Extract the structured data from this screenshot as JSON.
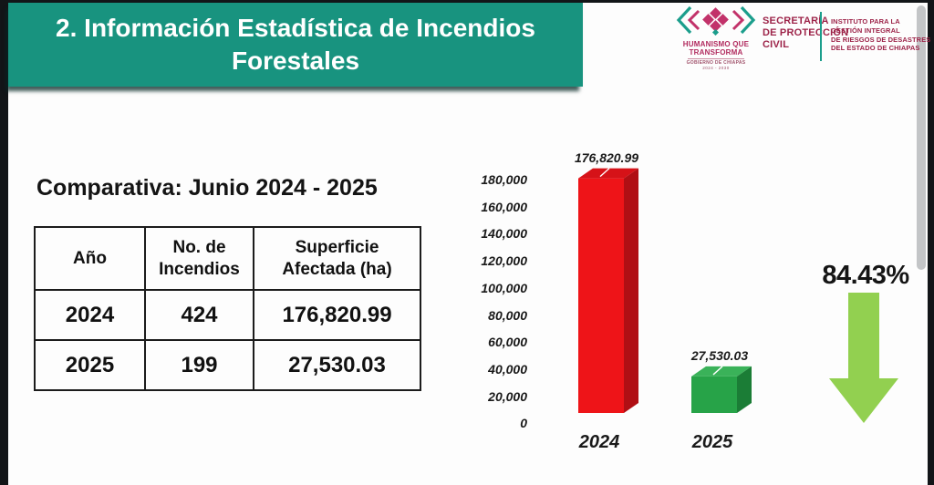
{
  "header": {
    "title": "2. Información Estadística de Incendios Forestales"
  },
  "logos": {
    "gobierno": {
      "name_line1": "HUMANISMO QUE",
      "name_line2": "TRANSFORMA",
      "sub1": "GOBIERNO DE CHIAPAS",
      "sub2": "2024 - 2030"
    },
    "secretaria": {
      "lines": [
        "SECRETARÍA",
        "DE PROTECCIÓN",
        "CIVIL"
      ]
    },
    "instituto": {
      "lines": [
        "INSTITUTO PARA LA",
        "GESTIÓN INTEGRAL",
        "DE RIESGOS DE DESASTRES",
        "DEL ESTADO DE CHIAPAS"
      ]
    }
  },
  "main": {
    "subtitle": "Comparativa: Junio 2024 - 2025"
  },
  "table": {
    "headers": [
      "Año",
      "No. de Incendios",
      "Superficie Afectada (ha)"
    ],
    "rows": [
      [
        "2024",
        "424",
        "176,820.99"
      ],
      [
        "2025",
        "199",
        "27,530.03"
      ]
    ]
  },
  "chart_data": {
    "type": "bar",
    "title": "",
    "xlabel": "",
    "ylabel": "",
    "categories": [
      "2024",
      "2025"
    ],
    "values": [
      176820.99,
      27530.03
    ],
    "value_labels": [
      "176,820.99",
      "27,530.03"
    ],
    "ylim": [
      0,
      180000
    ],
    "ytick_step": 20000,
    "ytick_labels": [
      "180,000",
      "160,000",
      "140,000",
      "120,000",
      "100,000",
      "80,000",
      "60,000",
      "40,000",
      "20,000",
      "0"
    ],
    "grid": false,
    "legend": false,
    "style": "3d",
    "bar_colors": [
      {
        "front": "#ee1418",
        "top": "#d61218",
        "side": "#b00f14"
      },
      {
        "front": "#27a348",
        "top": "#3ab259",
        "side": "#1b7d36"
      }
    ]
  },
  "summary": {
    "decrease_percent": "84.43%",
    "arrow_color": "#92d050"
  },
  "colors": {
    "banner_teal": "#18937f",
    "brand_maroon": "#9d2449",
    "divider_teal": "#1b9e8c"
  }
}
